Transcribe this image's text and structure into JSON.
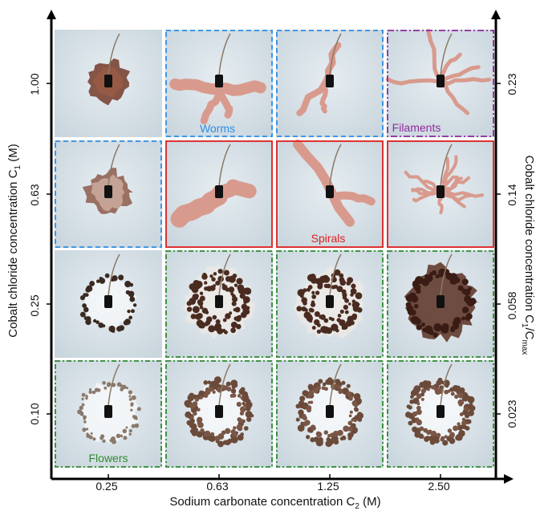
{
  "x_axis": {
    "title": "Sodium carbonate concentration C",
    "title_sub": "2",
    "title_unit": " (M)",
    "ticks": [
      "0.25",
      "0.63",
      "1.25",
      "2.50"
    ]
  },
  "y_axis_left": {
    "title": "Cobalt chloride concentration C",
    "title_sub": "1",
    "title_unit": " (M)",
    "ticks": [
      "1.00",
      "0.63",
      "0.25",
      "0.10"
    ]
  },
  "y_axis_right": {
    "title": "Cobalt chloride concentration C",
    "title_sub": "1",
    "title_mid": "/C",
    "title_sub2": "max",
    "ticks": [
      "0.23",
      "0.14",
      "0.058",
      "0.023"
    ]
  },
  "regime_labels": {
    "worms": "Worms",
    "filaments": "Filaments",
    "spirals": "Spirals",
    "flowers": "Flowers"
  },
  "colors": {
    "worms": "#2b8fe6",
    "filaments": "#8e2a9c",
    "spirals": "#e02020",
    "flowers": "#2e8b2e",
    "axis": "#000000",
    "tile_bg": "#dbe4ea",
    "pink": "#d99a8e",
    "brown": "#6e3e2a"
  },
  "grid": {
    "rows": [
      [
        "blob-brown",
        "worm-pink",
        "spiral-pink",
        "filament-pink"
      ],
      [
        "flower-pink",
        "spiral-pink-big",
        "spiral-pink-stripe",
        "filament-pink-dense"
      ],
      [
        "flower-ring-dark",
        "flower-dark",
        "flower-dark",
        "flower-dark-dense"
      ],
      [
        "flower-ring-light",
        "flower-ring-brown",
        "flower-ring-brown",
        "flower-ring-brown"
      ]
    ],
    "borders": [
      [
        "none",
        "worms",
        "worms",
        "filaments"
      ],
      [
        "worms",
        "spirals",
        "spirals",
        "spirals"
      ],
      [
        "none",
        "flowers",
        "flowers",
        "flowers"
      ],
      [
        "flowers",
        "flowers",
        "flowers",
        "flowers"
      ]
    ]
  }
}
